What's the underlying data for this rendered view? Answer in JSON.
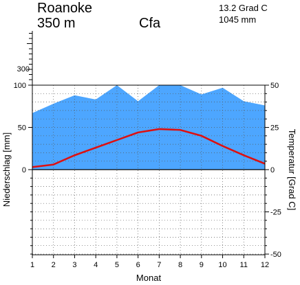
{
  "header": {
    "station": "Roanoke",
    "elevation": "350 m",
    "climate_class": "Cfa",
    "mean_temperature": "13.2 Grad C",
    "annual_precipitation": "1045 mm"
  },
  "chart_data": {
    "type": "area",
    "title": "",
    "xlabel": "Monat",
    "ylabel_left": "Niederschlag [mm]",
    "ylabel_right": "Temperatur [Grad C]",
    "x": [
      1,
      2,
      3,
      4,
      5,
      6,
      7,
      8,
      9,
      10,
      11,
      12
    ],
    "x_tick_labels": [
      "1",
      "2",
      "3",
      "4",
      "5",
      "6",
      "7",
      "8",
      "9",
      "10",
      "11",
      "12"
    ],
    "ylim_left": [
      0,
      100
    ],
    "ylim_right": [
      -50,
      50
    ],
    "upper_scale_tick_label": "300",
    "left_tick_labels": [
      "100",
      "50",
      "0"
    ],
    "right_tick_labels": [
      "50",
      "25",
      "0",
      "-25",
      "-50"
    ],
    "grid": true,
    "colors": {
      "precipitation": "#4da6ff",
      "temperature": "#dd1111"
    },
    "series": [
      {
        "values": [
          67,
          78,
          88,
          83,
          101,
          81,
          100,
          100,
          89,
          97,
          81,
          76
        ]
      },
      {
        "values": [
          1.5,
          3,
          8.5,
          13,
          17.5,
          22,
          24,
          23.5,
          20,
          14,
          8.5,
          3.5
        ]
      }
    ]
  }
}
